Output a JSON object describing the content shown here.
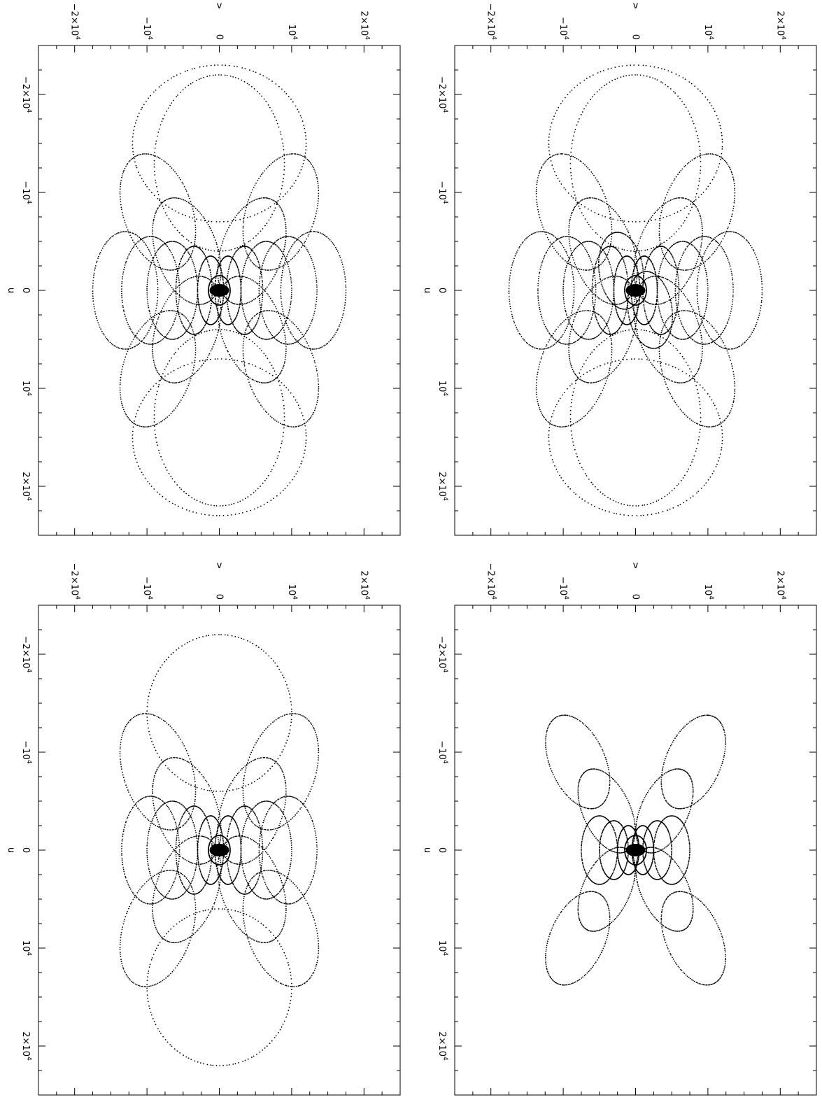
{
  "chart_data": [
    {
      "type": "scatter",
      "panel": "top-left",
      "title": "",
      "xlabel": "u",
      "ylabel": "v",
      "xlim": [
        -25000,
        25000
      ],
      "ylim": [
        -25000,
        25000
      ],
      "x_ticks": [
        {
          "value": -20000,
          "mantissa": "−2×10",
          "exp": "4"
        },
        {
          "value": -10000,
          "mantissa": "−10",
          "exp": "4"
        },
        {
          "value": 0,
          "mantissa": "0",
          "exp": ""
        },
        {
          "value": 10000,
          "mantissa": "10",
          "exp": "4"
        },
        {
          "value": 20000,
          "mantissa": "2×10",
          "exp": "4"
        }
      ],
      "y_ticks": [
        {
          "value": 20000,
          "mantissa": "2×10",
          "exp": "4"
        },
        {
          "value": 10000,
          "mantissa": "10",
          "exp": "4"
        },
        {
          "value": 0,
          "mantissa": "0",
          "exp": ""
        },
        {
          "value": -10000,
          "mantissa": "−10",
          "exp": "4"
        },
        {
          "value": -20000,
          "mantissa": "−2×10",
          "exp": "4"
        }
      ],
      "grid": false,
      "legend": "none",
      "rotated": true,
      "tracks": [
        {
          "u0": 0,
          "v0": 0,
          "du": 1500,
          "dv": 1500,
          "tilt": 0
        },
        {
          "u0": 0,
          "v0": 1200,
          "du": 3500,
          "dv": 1800,
          "tilt": 0
        },
        {
          "u0": 0,
          "v0": -1200,
          "du": 3500,
          "dv": 1800,
          "tilt": 0
        },
        {
          "u0": 0,
          "v0": 3500,
          "du": 4500,
          "dv": 2500,
          "tilt": 0
        },
        {
          "u0": 0,
          "v0": -3500,
          "du": 4500,
          "dv": 2500,
          "tilt": 0
        },
        {
          "u0": 0,
          "v0": 6500,
          "du": 5000,
          "dv": 3500,
          "tilt": 0
        },
        {
          "u0": 0,
          "v0": -6500,
          "du": 5000,
          "dv": 3500,
          "tilt": 0
        },
        {
          "u0": 0,
          "v0": 9500,
          "du": 5500,
          "dv": 4000,
          "tilt": 0
        },
        {
          "u0": 0,
          "v0": -9500,
          "du": 5500,
          "dv": 4000,
          "tilt": 0
        },
        {
          "u0": 0,
          "v0": 13000,
          "du": 6000,
          "dv": 4500,
          "tilt": 0
        },
        {
          "u0": 0,
          "v0": -13000,
          "du": 6000,
          "dv": 4500,
          "tilt": 0
        },
        {
          "u0": 4000,
          "v0": 4500,
          "du": 6000,
          "dv": 4000,
          "tilt": 0.6
        },
        {
          "u0": -4000,
          "v0": -4500,
          "du": 6000,
          "dv": 4000,
          "tilt": 0.6
        },
        {
          "u0": 4000,
          "v0": -4500,
          "du": 6000,
          "dv": 4000,
          "tilt": -0.6
        },
        {
          "u0": -4000,
          "v0": 4500,
          "du": 6000,
          "dv": 4000,
          "tilt": -0.6
        },
        {
          "u0": 8000,
          "v0": 8500,
          "du": 6500,
          "dv": 4500,
          "tilt": 0.6
        },
        {
          "u0": -8000,
          "v0": -8500,
          "du": 6500,
          "dv": 4500,
          "tilt": 0.6
        },
        {
          "u0": 8000,
          "v0": -8500,
          "du": 6500,
          "dv": 4500,
          "tilt": -0.6
        },
        {
          "u0": -8000,
          "v0": 8500,
          "du": 6500,
          "dv": 4500,
          "tilt": -0.6
        },
        {
          "u0": 13000,
          "v0": 0,
          "du": 9000,
          "dv": 9000,
          "tilt": 0
        },
        {
          "u0": -13000,
          "v0": 0,
          "du": 9000,
          "dv": 9000,
          "tilt": 0
        },
        {
          "u0": 15000,
          "v0": 0,
          "du": 8000,
          "dv": 12000,
          "tilt": 0
        },
        {
          "u0": -15000,
          "v0": 0,
          "du": 8000,
          "dv": 12000,
          "tilt": 0
        }
      ]
    },
    {
      "type": "scatter",
      "panel": "top-right",
      "title": "",
      "xlabel": "u",
      "ylabel": "v",
      "xlim": [
        -25000,
        25000
      ],
      "ylim": [
        -25000,
        25000
      ],
      "x_ticks": [
        {
          "value": -20000,
          "mantissa": "−2×10",
          "exp": "4"
        },
        {
          "value": -10000,
          "mantissa": "−10",
          "exp": "4"
        },
        {
          "value": 0,
          "mantissa": "0",
          "exp": ""
        },
        {
          "value": 10000,
          "mantissa": "10",
          "exp": "4"
        },
        {
          "value": 20000,
          "mantissa": "2×10",
          "exp": "4"
        }
      ],
      "y_ticks": [
        {
          "value": 20000,
          "mantissa": "2×10",
          "exp": "4"
        },
        {
          "value": 10000,
          "mantissa": "10",
          "exp": "4"
        },
        {
          "value": 0,
          "mantissa": "0",
          "exp": ""
        },
        {
          "value": -10000,
          "mantissa": "−10",
          "exp": "4"
        },
        {
          "value": -20000,
          "mantissa": "−2×10",
          "exp": "4"
        }
      ],
      "grid": false,
      "legend": "none",
      "rotated": true,
      "tracks": [
        {
          "u0": 0,
          "v0": 0,
          "du": 1500,
          "dv": 1500,
          "tilt": 0
        },
        {
          "u0": 0,
          "v0": 1200,
          "du": 3500,
          "dv": 1800,
          "tilt": 0
        },
        {
          "u0": 0,
          "v0": -1200,
          "du": 3500,
          "dv": 1800,
          "tilt": 0
        },
        {
          "u0": 0,
          "v0": 3500,
          "du": 4500,
          "dv": 2500,
          "tilt": 0
        },
        {
          "u0": 0,
          "v0": -3500,
          "du": 4500,
          "dv": 2500,
          "tilt": 0
        },
        {
          "u0": 0,
          "v0": 6500,
          "du": 5000,
          "dv": 3500,
          "tilt": 0
        },
        {
          "u0": 0,
          "v0": -6500,
          "du": 5000,
          "dv": 3500,
          "tilt": 0
        },
        {
          "u0": 0,
          "v0": 9500,
          "du": 5500,
          "dv": 4000,
          "tilt": 0
        },
        {
          "u0": 0,
          "v0": -9500,
          "du": 5500,
          "dv": 4000,
          "tilt": 0
        },
        {
          "u0": 0,
          "v0": 13000,
          "du": 6000,
          "dv": 4500,
          "tilt": 0
        },
        {
          "u0": 0,
          "v0": -13000,
          "du": 6000,
          "dv": 4500,
          "tilt": 0
        },
        {
          "u0": 4000,
          "v0": 4500,
          "du": 6000,
          "dv": 4000,
          "tilt": 0.6
        },
        {
          "u0": -4000,
          "v0": -4500,
          "du": 6000,
          "dv": 4000,
          "tilt": 0.6
        },
        {
          "u0": 4000,
          "v0": -4500,
          "du": 6000,
          "dv": 4000,
          "tilt": -0.6
        },
        {
          "u0": -4000,
          "v0": 4500,
          "du": 6000,
          "dv": 4000,
          "tilt": -0.6
        },
        {
          "u0": 8000,
          "v0": 8500,
          "du": 6500,
          "dv": 4500,
          "tilt": 0.6
        },
        {
          "u0": -8000,
          "v0": -8500,
          "du": 6500,
          "dv": 4500,
          "tilt": 0.6
        },
        {
          "u0": 8000,
          "v0": -8500,
          "du": 6500,
          "dv": 4500,
          "tilt": -0.6
        },
        {
          "u0": -8000,
          "v0": 8500,
          "du": 6500,
          "dv": 4500,
          "tilt": -0.6
        },
        {
          "u0": 13000,
          "v0": 0,
          "du": 9000,
          "dv": 9000,
          "tilt": 0
        },
        {
          "u0": -13000,
          "v0": 0,
          "du": 9000,
          "dv": 9000,
          "tilt": 0
        },
        {
          "u0": 15000,
          "v0": 0,
          "du": 8000,
          "dv": 12000,
          "tilt": 0
        },
        {
          "u0": -15000,
          "v0": 0,
          "du": 8000,
          "dv": 12000,
          "tilt": 0
        },
        {
          "u0": 2000,
          "v0": 2000,
          "du": 4000,
          "dv": 3000,
          "tilt": 0.3
        },
        {
          "u0": -2000,
          "v0": -2000,
          "du": 4000,
          "dv": 3000,
          "tilt": 0.3
        }
      ]
    },
    {
      "type": "scatter",
      "panel": "bottom-left",
      "title": "",
      "xlabel": "u",
      "ylabel": "v",
      "xlim": [
        -25000,
        25000
      ],
      "ylim": [
        -25000,
        25000
      ],
      "x_ticks": [
        {
          "value": -20000,
          "mantissa": "−2×10",
          "exp": "4"
        },
        {
          "value": -10000,
          "mantissa": "−10",
          "exp": "4"
        },
        {
          "value": 0,
          "mantissa": "0",
          "exp": ""
        },
        {
          "value": 10000,
          "mantissa": "10",
          "exp": "4"
        },
        {
          "value": 20000,
          "mantissa": "2×10",
          "exp": "4"
        }
      ],
      "y_ticks": [
        {
          "value": 20000,
          "mantissa": "2×10",
          "exp": "4"
        },
        {
          "value": 10000,
          "mantissa": "10",
          "exp": "4"
        },
        {
          "value": 0,
          "mantissa": "0",
          "exp": ""
        },
        {
          "value": -10000,
          "mantissa": "−10",
          "exp": "4"
        },
        {
          "value": -20000,
          "mantissa": "−2×10",
          "exp": "4"
        }
      ],
      "grid": false,
      "legend": "none",
      "rotated": true,
      "tracks": [
        {
          "u0": 0,
          "v0": 0,
          "du": 1500,
          "dv": 1500,
          "tilt": 0
        },
        {
          "u0": 0,
          "v0": 1200,
          "du": 3500,
          "dv": 1800,
          "tilt": 0
        },
        {
          "u0": 0,
          "v0": -1200,
          "du": 3500,
          "dv": 1800,
          "tilt": 0
        },
        {
          "u0": 0,
          "v0": 3500,
          "du": 4500,
          "dv": 2500,
          "tilt": 0
        },
        {
          "u0": 0,
          "v0": -3500,
          "du": 4500,
          "dv": 2500,
          "tilt": 0
        },
        {
          "u0": 0,
          "v0": 6500,
          "du": 5000,
          "dv": 3500,
          "tilt": 0
        },
        {
          "u0": 0,
          "v0": -6500,
          "du": 5000,
          "dv": 3500,
          "tilt": 0
        },
        {
          "u0": 0,
          "v0": 9500,
          "du": 5500,
          "dv": 4000,
          "tilt": 0
        },
        {
          "u0": 0,
          "v0": -9500,
          "du": 5500,
          "dv": 4000,
          "tilt": 0
        },
        {
          "u0": 4000,
          "v0": 4500,
          "du": 6000,
          "dv": 4000,
          "tilt": 0.6
        },
        {
          "u0": -4000,
          "v0": -4500,
          "du": 6000,
          "dv": 4000,
          "tilt": 0.6
        },
        {
          "u0": 4000,
          "v0": -4500,
          "du": 6000,
          "dv": 4000,
          "tilt": -0.6
        },
        {
          "u0": -4000,
          "v0": 4500,
          "du": 6000,
          "dv": 4000,
          "tilt": -0.6
        },
        {
          "u0": 8000,
          "v0": 8500,
          "du": 6500,
          "dv": 4500,
          "tilt": 0.6
        },
        {
          "u0": -8000,
          "v0": -8500,
          "du": 6500,
          "dv": 4500,
          "tilt": 0.6
        },
        {
          "u0": 8000,
          "v0": -8500,
          "du": 6500,
          "dv": 4500,
          "tilt": -0.6
        },
        {
          "u0": -8000,
          "v0": 8500,
          "du": 6500,
          "dv": 4500,
          "tilt": -0.6
        },
        {
          "u0": 14000,
          "v0": 0,
          "du": 8000,
          "dv": 10000,
          "tilt": 0
        },
        {
          "u0": -14000,
          "v0": 0,
          "du": 8000,
          "dv": 10000,
          "tilt": 0
        }
      ]
    },
    {
      "type": "scatter",
      "panel": "bottom-right",
      "title": "",
      "xlabel": "u",
      "ylabel": "v",
      "xlim": [
        -25000,
        25000
      ],
      "ylim": [
        -25000,
        25000
      ],
      "x_ticks": [
        {
          "value": -20000,
          "mantissa": "−2×10",
          "exp": "4"
        },
        {
          "value": -10000,
          "mantissa": "−10",
          "exp": "4"
        },
        {
          "value": 0,
          "mantissa": "0",
          "exp": ""
        },
        {
          "value": 10000,
          "mantissa": "10",
          "exp": "4"
        },
        {
          "value": 20000,
          "mantissa": "2×10",
          "exp": "4"
        }
      ],
      "y_ticks": [
        {
          "value": 20000,
          "mantissa": "2×10",
          "exp": "4"
        },
        {
          "value": 10000,
          "mantissa": "10",
          "exp": "4"
        },
        {
          "value": 0,
          "mantissa": "0",
          "exp": ""
        },
        {
          "value": -10000,
          "mantissa": "−10",
          "exp": "4"
        },
        {
          "value": -20000,
          "mantissa": "−2×10",
          "exp": "4"
        }
      ],
      "grid": false,
      "legend": "none",
      "rotated": true,
      "tracks": [
        {
          "u0": 0,
          "v0": 0,
          "du": 1500,
          "dv": 1500,
          "tilt": 0
        },
        {
          "u0": 0,
          "v0": 1000,
          "du": 2500,
          "dv": 1500,
          "tilt": 0
        },
        {
          "u0": 0,
          "v0": -1000,
          "du": 2500,
          "dv": 1500,
          "tilt": 0
        },
        {
          "u0": 0,
          "v0": 3000,
          "du": 3000,
          "dv": 2000,
          "tilt": 0
        },
        {
          "u0": 0,
          "v0": -3000,
          "du": 3000,
          "dv": 2000,
          "tilt": 0
        },
        {
          "u0": 0,
          "v0": 5000,
          "du": 3500,
          "dv": 2500,
          "tilt": 0
        },
        {
          "u0": 0,
          "v0": -5000,
          "du": 3500,
          "dv": 2500,
          "tilt": 0
        },
        {
          "u0": 4000,
          "v0": 4000,
          "du": 5000,
          "dv": 3000,
          "tilt": 0.7
        },
        {
          "u0": -4000,
          "v0": -4000,
          "du": 5000,
          "dv": 3000,
          "tilt": 0.7
        },
        {
          "u0": 4000,
          "v0": -4000,
          "du": 5000,
          "dv": 3000,
          "tilt": -0.7
        },
        {
          "u0": -4000,
          "v0": 4000,
          "du": 5000,
          "dv": 3000,
          "tilt": -0.7
        },
        {
          "u0": 9000,
          "v0": 8000,
          "du": 5500,
          "dv": 3500,
          "tilt": 0.7
        },
        {
          "u0": -9000,
          "v0": -8000,
          "du": 5500,
          "dv": 3500,
          "tilt": 0.7
        },
        {
          "u0": 9000,
          "v0": -8000,
          "du": 5500,
          "dv": 3500,
          "tilt": -0.7
        },
        {
          "u0": -9000,
          "v0": 8000,
          "du": 5500,
          "dv": 3500,
          "tilt": -0.7
        }
      ]
    }
  ]
}
